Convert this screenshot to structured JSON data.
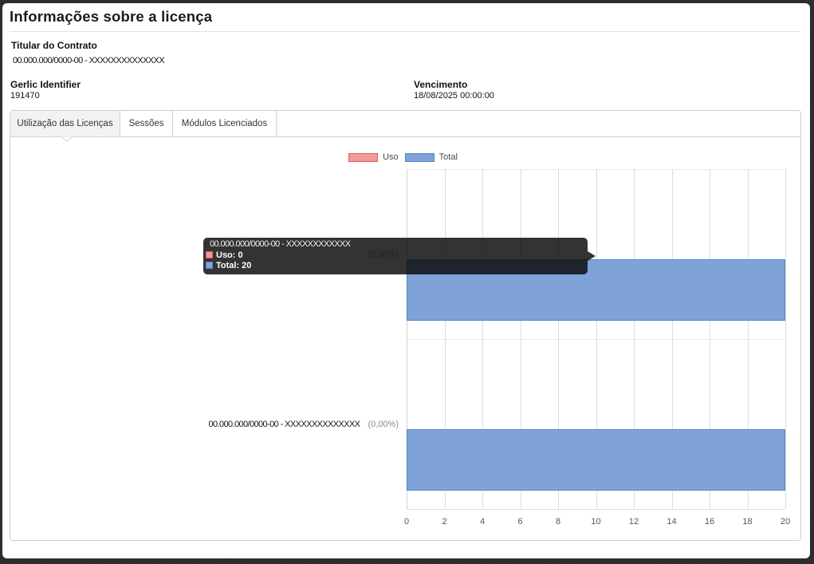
{
  "header": {
    "title": "Informações sobre a licença"
  },
  "fields": {
    "titular": {
      "label": "Titular do Contrato",
      "value": "00.000.000/0000-00 - XXXXXXXXXXXXXX"
    },
    "gerlic": {
      "label": "Gerlic Identifier",
      "value": "191470"
    },
    "vencimento": {
      "label": "Vencimento",
      "value": "18/08/2025 00:00:00"
    }
  },
  "tabs": [
    {
      "label": "Utilização das Licenças",
      "active": true
    },
    {
      "label": "Sessões",
      "active": false
    },
    {
      "label": "Módulos Licenciados",
      "active": false
    }
  ],
  "chart_data": {
    "type": "bar",
    "orientation": "horizontal",
    "title": "",
    "categories": [
      "00.000.000/0000-00 - XXXXXXXXXXXXXX",
      "00.000.000/0000-00 - XXXXXXXXXXXXXX"
    ],
    "category_percent_labels": [
      "(0,00%)",
      "(0,00%)"
    ],
    "series": [
      {
        "name": "Uso",
        "values": [
          0,
          0
        ],
        "fill": "#f09a9a",
        "border": "#e05c5c"
      },
      {
        "name": "Total",
        "values": [
          20,
          20
        ],
        "fill": "#7fa3d8",
        "border": "#5585c4"
      }
    ],
    "xlim": [
      0,
      20
    ],
    "xticks": [
      0,
      2,
      4,
      6,
      8,
      10,
      12,
      14,
      16,
      18,
      20
    ],
    "grid": true,
    "legend_position": "top-center"
  },
  "tooltip": {
    "title": "00.000.000/0000-00 - XXXXXXXXXXXX",
    "category_index": 0,
    "rows": [
      {
        "label": "Uso: 0",
        "series": "Uso",
        "value": 0
      },
      {
        "label": "Total: 20",
        "series": "Total",
        "value": 20
      }
    ]
  }
}
